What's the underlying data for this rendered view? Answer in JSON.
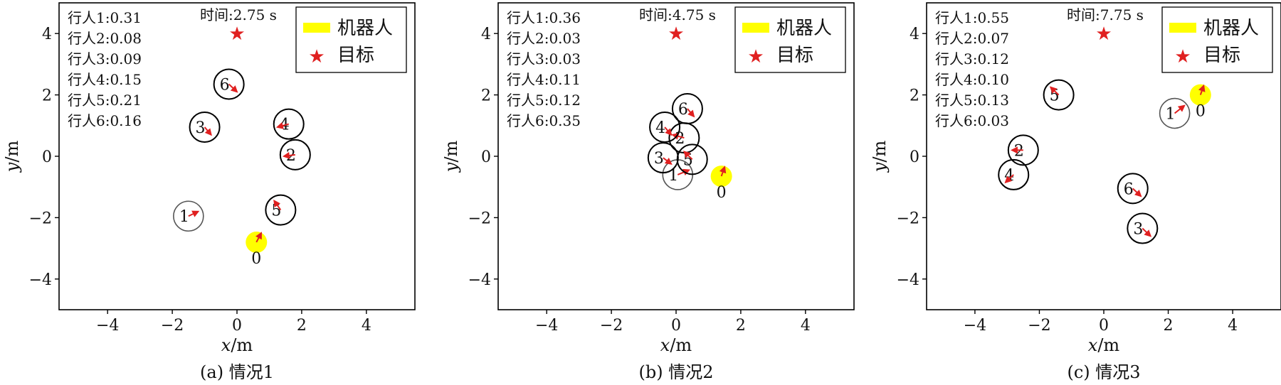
{
  "legend": {
    "robot": "机器人",
    "goal": "目标"
  },
  "colors": {
    "robot_fill": "#ffff00",
    "goal": "#e02020",
    "arrow": "#e02020",
    "ped_ring_dark": "#000000",
    "ped_ring_gray": "#555555"
  },
  "chart_data": [
    {
      "type": "scatter",
      "caption": "(a) 情况1",
      "time_label": "时间:2.75 s",
      "xlabel_var": "x",
      "xlabel_unit": "/m",
      "ylabel_var": "y",
      "ylabel_unit": "/m",
      "xlim": [
        -5.5,
        5.5
      ],
      "ylim": [
        -5,
        5
      ],
      "xticks": [
        -4,
        -2,
        0,
        2,
        4
      ],
      "yticks": [
        -4,
        -2,
        0,
        2,
        4
      ],
      "tick_labels": {
        "x": [
          "−4",
          "−2",
          "0",
          "2",
          "4"
        ],
        "y": [
          "−4",
          "−2",
          "0",
          "2",
          "4"
        ]
      },
      "annotations": [
        "行人1:0.31",
        "行人2:0.08",
        "行人3:0.09",
        "行人4:0.15",
        "行人5:0.21",
        "行人6:0.16"
      ],
      "goal": {
        "x": 0,
        "y": 4
      },
      "robot": {
        "label": "0",
        "x": 0.6,
        "y": -2.8,
        "dx": 0.15,
        "dy": 0.3
      },
      "pedestrians": [
        {
          "label": "1",
          "x": -1.5,
          "y": -1.95,
          "dx": 0.3,
          "dy": 0.15,
          "ring": "gray"
        },
        {
          "label": "2",
          "x": 1.8,
          "y": 0.05,
          "dx": -0.35,
          "dy": -0.05,
          "ring": "dark"
        },
        {
          "label": "3",
          "x": -1.0,
          "y": 0.95,
          "dx": 0.2,
          "dy": -0.25,
          "ring": "dark"
        },
        {
          "label": "4",
          "x": 1.6,
          "y": 1.05,
          "dx": -0.35,
          "dy": -0.1,
          "ring": "dark"
        },
        {
          "label": "5",
          "x": 1.35,
          "y": -1.75,
          "dx": -0.2,
          "dy": 0.3,
          "ring": "dark"
        },
        {
          "label": "6",
          "x": -0.25,
          "y": 2.35,
          "dx": 0.25,
          "dy": -0.25,
          "ring": "dark"
        }
      ]
    },
    {
      "type": "scatter",
      "caption": "(b) 情况2",
      "time_label": "时间:4.75 s",
      "xlabel_var": "x",
      "xlabel_unit": "/m",
      "ylabel_var": "y",
      "ylabel_unit": "/m",
      "xlim": [
        -5.5,
        5.5
      ],
      "ylim": [
        -5,
        5
      ],
      "xticks": [
        -4,
        -2,
        0,
        2,
        4
      ],
      "yticks": [
        -4,
        -2,
        0,
        2,
        4
      ],
      "tick_labels": {
        "x": [
          "−4",
          "−2",
          "0",
          "2",
          "4"
        ],
        "y": [
          "−4",
          "−2",
          "0",
          "2",
          "4"
        ]
      },
      "annotations": [
        "行人1:0.36",
        "行人2:0.03",
        "行人3:0.03",
        "行人4:0.11",
        "行人5:0.12",
        "行人6:0.35"
      ],
      "goal": {
        "x": 0,
        "y": 4
      },
      "robot": {
        "label": "0",
        "x": 1.4,
        "y": -0.65,
        "dx": 0.1,
        "dy": 0.3
      },
      "pedestrians": [
        {
          "label": "1",
          "x": 0.05,
          "y": -0.6,
          "dx": 0.35,
          "dy": 0.15,
          "ring": "gray"
        },
        {
          "label": "2",
          "x": 0.25,
          "y": 0.6,
          "dx": -0.35,
          "dy": 0.1,
          "ring": "dark"
        },
        {
          "label": "3",
          "x": -0.4,
          "y": -0.05,
          "dx": 0.25,
          "dy": -0.2,
          "ring": "dark"
        },
        {
          "label": "4",
          "x": -0.35,
          "y": 0.95,
          "dx": 0.2,
          "dy": -0.25,
          "ring": "dark"
        },
        {
          "label": "5",
          "x": 0.5,
          "y": -0.1,
          "dx": -0.25,
          "dy": 0.25,
          "ring": "dark"
        },
        {
          "label": "6",
          "x": 0.35,
          "y": 1.55,
          "dx": 0.2,
          "dy": -0.25,
          "ring": "dark"
        }
      ]
    },
    {
      "type": "scatter",
      "caption": "(c) 情况3",
      "time_label": "时间:7.75 s",
      "xlabel_var": "x",
      "xlabel_unit": "/m",
      "ylabel_var": "y",
      "ylabel_unit": "/m",
      "xlim": [
        -5.5,
        5.5
      ],
      "ylim": [
        -5,
        5
      ],
      "xticks": [
        -4,
        -2,
        0,
        2,
        4
      ],
      "yticks": [
        -4,
        -2,
        0,
        2,
        4
      ],
      "tick_labels": {
        "x": [
          "−4",
          "−2",
          "0",
          "2",
          "4"
        ],
        "y": [
          "−4",
          "−2",
          "0",
          "2",
          "4"
        ]
      },
      "annotations": [
        "行人1:0.55",
        "行人2:0.07",
        "行人3:0.12",
        "行人4:0.10",
        "行人5:0.13",
        "行人6:0.03"
      ],
      "goal": {
        "x": 0,
        "y": 4
      },
      "robot": {
        "label": "0",
        "x": 3.0,
        "y": 2.0,
        "dx": 0.1,
        "dy": 0.3
      },
      "pedestrians": [
        {
          "label": "1",
          "x": 2.2,
          "y": 1.4,
          "dx": 0.3,
          "dy": 0.25,
          "ring": "gray"
        },
        {
          "label": "2",
          "x": -2.5,
          "y": 0.2,
          "dx": -0.35,
          "dy": 0.0,
          "ring": "dark"
        },
        {
          "label": "3",
          "x": 1.2,
          "y": -2.35,
          "dx": 0.25,
          "dy": -0.25,
          "ring": "dark"
        },
        {
          "label": "4",
          "x": -2.8,
          "y": -0.6,
          "dx": -0.25,
          "dy": -0.25,
          "ring": "dark"
        },
        {
          "label": "5",
          "x": -1.4,
          "y": 2.0,
          "dx": -0.25,
          "dy": 0.25,
          "ring": "dark"
        },
        {
          "label": "6",
          "x": 0.9,
          "y": -1.05,
          "dx": 0.25,
          "dy": -0.25,
          "ring": "dark"
        }
      ]
    }
  ]
}
